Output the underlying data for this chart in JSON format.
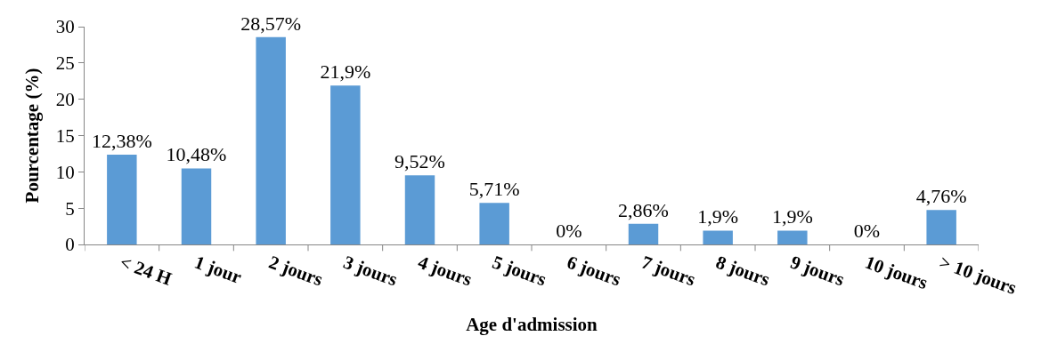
{
  "chart_data": {
    "type": "bar",
    "xlabel": "Age d'admission",
    "ylabel": "Pourcentage (%)",
    "categories": [
      "˂ 24 H",
      "1 jour",
      "2 jours",
      "3 jours",
      "4 jours",
      "5 jours",
      "6 jours",
      "7 jours",
      "8 jours",
      "9 jours",
      "10 jours",
      "˃ 10 jours"
    ],
    "values": [
      12.38,
      10.48,
      28.57,
      21.9,
      9.52,
      5.71,
      0,
      2.86,
      1.9,
      1.9,
      0,
      4.76
    ],
    "value_labels": [
      "12,38%",
      "10,48%",
      "28,57%",
      "21,9%",
      "9,52%",
      "5,71%",
      "0%",
      "2,86%",
      "1,9%",
      "1,9%",
      "0%",
      "4,76%"
    ],
    "color": "#5b9bd5",
    "ylim": [
      0,
      30
    ],
    "yticks": [
      0,
      5,
      10,
      15,
      20,
      25,
      30
    ],
    "grid": false
  }
}
